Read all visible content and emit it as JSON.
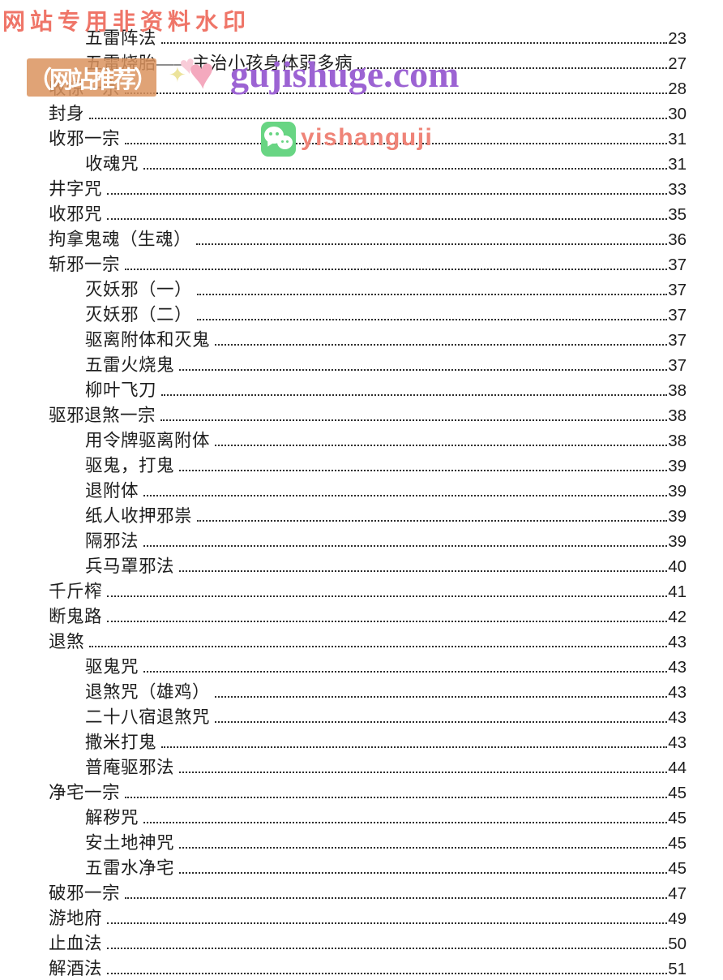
{
  "page": {
    "background_color": "#ffffff",
    "text_color": "#1d1d1d",
    "dot_leader_color": "#2c2c2c"
  },
  "watermarks": {
    "top_left": {
      "text": "网站专用非资料水印",
      "color": "#ef7568"
    },
    "badge": {
      "text": "（网站推荐）",
      "background_color": "#db935e",
      "text_color": "#ffffff"
    },
    "site_logo": {
      "text": "gujishuge.com",
      "color": "#9c63d3",
      "sparkle_icon": "✦",
      "heart_small_icon": "♥",
      "heart_big_icon": "♥",
      "heart_color": "#f4a9be"
    },
    "wechat": {
      "text": "yishanguji",
      "text_color": "#ef8478",
      "icon_background_color": "#68d583"
    }
  },
  "toc": {
    "entries": [
      {
        "label": "五雷阵法",
        "page": "23",
        "level": 2
      },
      {
        "label": "五雷烧胎——主治小孩身体弱多病",
        "page": "27",
        "level": 2
      },
      {
        "label": "收惊一宗",
        "page": "28",
        "level": 1
      },
      {
        "label": "封身",
        "page": "30",
        "level": 1
      },
      {
        "label": "收邪一宗",
        "page": "31",
        "level": 1
      },
      {
        "label": "收魂咒",
        "page": "31",
        "level": 2
      },
      {
        "label": "井字咒",
        "page": "33",
        "level": 1
      },
      {
        "label": "收邪咒",
        "page": "35",
        "level": 1
      },
      {
        "label": "拘拿鬼魂（生魂）",
        "page": "36",
        "level": 1
      },
      {
        "label": "斩邪一宗",
        "page": "37",
        "level": 1
      },
      {
        "label": "灭妖邪（一）",
        "page": "37",
        "level": 2
      },
      {
        "label": "灭妖邪（二）",
        "page": "37",
        "level": 2
      },
      {
        "label": "驱离附体和灭鬼",
        "page": "37",
        "level": 2
      },
      {
        "label": "五雷火烧鬼",
        "page": "37",
        "level": 2
      },
      {
        "label": "柳叶飞刀",
        "page": "38",
        "level": 2
      },
      {
        "label": "驱邪退煞一宗",
        "page": "38",
        "level": 1
      },
      {
        "label": "用令牌驱离附体",
        "page": "38",
        "level": 2
      },
      {
        "label": "驱鬼，打鬼",
        "page": "39",
        "level": 2
      },
      {
        "label": "退附体",
        "page": "39",
        "level": 2
      },
      {
        "label": "纸人收押邪祟",
        "page": "39",
        "level": 2
      },
      {
        "label": "隔邪法",
        "page": "39",
        "level": 2
      },
      {
        "label": "兵马罩邪法",
        "page": "40",
        "level": 2
      },
      {
        "label": "千斤榨",
        "page": "41",
        "level": 1
      },
      {
        "label": "断鬼路",
        "page": "42",
        "level": 1
      },
      {
        "label": "退煞",
        "page": "43",
        "level": 1
      },
      {
        "label": "驱鬼咒",
        "page": "43",
        "level": 2
      },
      {
        "label": "退煞咒（雄鸡）",
        "page": "43",
        "level": 2
      },
      {
        "label": "二十八宿退煞咒",
        "page": "43",
        "level": 2
      },
      {
        "label": "撒米打鬼",
        "page": "43",
        "level": 2
      },
      {
        "label": "普庵驱邪法",
        "page": "44",
        "level": 2
      },
      {
        "label": "净宅一宗",
        "page": "45",
        "level": 1
      },
      {
        "label": "解秽咒",
        "page": "45",
        "level": 2
      },
      {
        "label": "安土地神咒",
        "page": "45",
        "level": 2
      },
      {
        "label": "五雷水净宅",
        "page": "45",
        "level": 2
      },
      {
        "label": "破邪一宗",
        "page": "47",
        "level": 1
      },
      {
        "label": "游地府",
        "page": "49",
        "level": 1
      },
      {
        "label": "止血法",
        "page": "50",
        "level": 1
      },
      {
        "label": "解酒法",
        "page": "51",
        "level": 1
      }
    ]
  }
}
